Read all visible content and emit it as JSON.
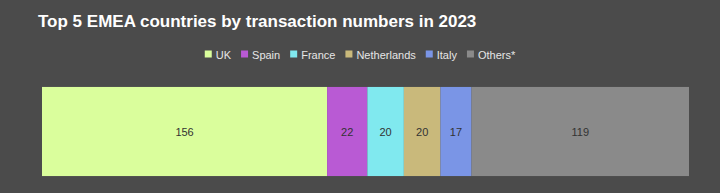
{
  "chart_data": {
    "type": "bar",
    "title": "Top 5 EMEA countries by transaction numbers in 2023",
    "orientation": "horizontal",
    "stacked": true,
    "data_labels": true,
    "tick_labels": false,
    "legend": "top",
    "categories": [
      null
    ],
    "series": [
      {
        "name": "UK",
        "color": "#dafe9c",
        "values": [
          156
        ]
      },
      {
        "name": "Spain",
        "color": "#b95ad4",
        "values": [
          22
        ]
      },
      {
        "name": "France",
        "color": "#80e9ef",
        "values": [
          20
        ]
      },
      {
        "name": "Netherlands",
        "color": "#c9b97b",
        "values": [
          20
        ]
      },
      {
        "name": "Italy",
        "color": "#7a95e6",
        "values": [
          17
        ]
      },
      {
        "name": "Others*",
        "color": "#8a8a8a",
        "values": [
          119
        ]
      }
    ]
  }
}
